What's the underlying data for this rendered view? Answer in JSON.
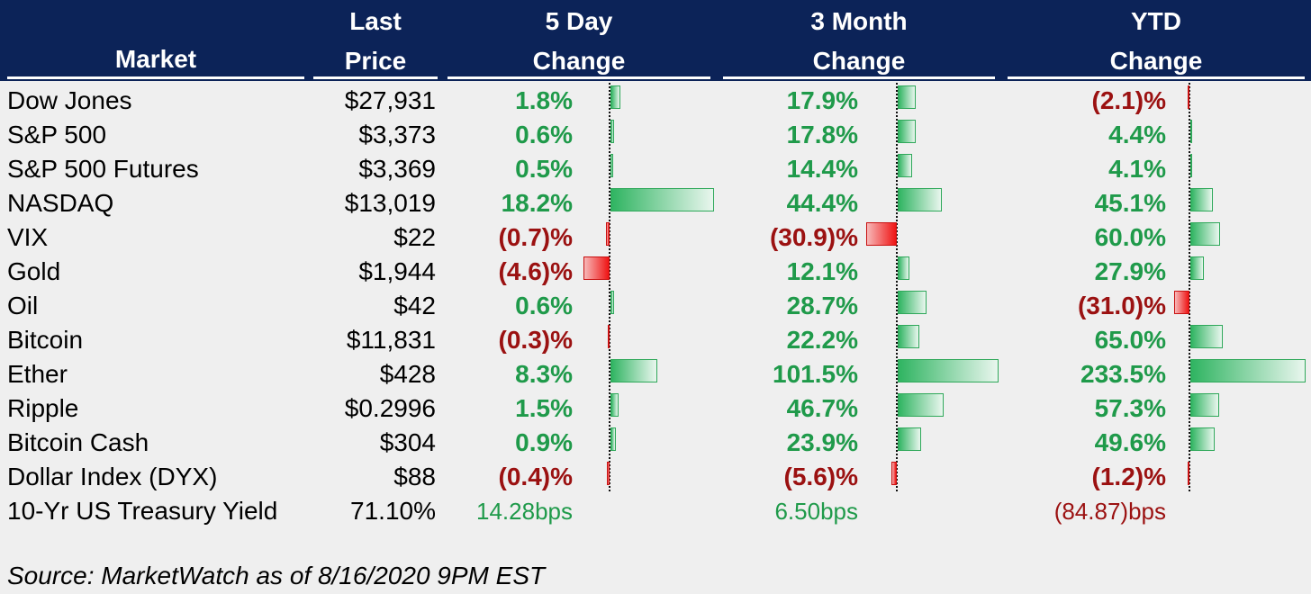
{
  "header": {
    "market": "Market",
    "price_line1": "Last",
    "price_line2": "Price",
    "five_day_line1": "5 Day",
    "five_day_line2": "Change",
    "three_month_line1": "3 Month",
    "three_month_line2": "Change",
    "ytd_line1": "YTD",
    "ytd_line2": "Change"
  },
  "colors": {
    "header_bg": "#0c2358",
    "positive": "#1f9a4a",
    "negative": "#9b1111",
    "background": "#efefef"
  },
  "chart_data": {
    "type": "table",
    "columns": [
      "Market",
      "Last Price",
      "5 Day Change",
      "3 Month Change",
      "YTD Change"
    ],
    "rows": [
      {
        "market": "Dow Jones",
        "price": "$27,931",
        "d5": "1.8%",
        "d5_val": 1.8,
        "m3": "17.9%",
        "m3_val": 17.9,
        "ytd": "(2.1)%",
        "ytd_val": -2.1
      },
      {
        "market": "S&P 500",
        "price": "$3,373",
        "d5": "0.6%",
        "d5_val": 0.6,
        "m3": "17.8%",
        "m3_val": 17.8,
        "ytd": "4.4%",
        "ytd_val": 4.4
      },
      {
        "market": "S&P 500 Futures",
        "price": "$3,369",
        "d5": "0.5%",
        "d5_val": 0.5,
        "m3": "14.4%",
        "m3_val": 14.4,
        "ytd": "4.1%",
        "ytd_val": 4.1
      },
      {
        "market": "NASDAQ",
        "price": "$13,019",
        "d5": "18.2%",
        "d5_val": 18.2,
        "m3": "44.4%",
        "m3_val": 44.4,
        "ytd": "45.1%",
        "ytd_val": 45.1
      },
      {
        "market": "VIX",
        "price": "$22",
        "d5": "(0.7)%",
        "d5_val": -0.7,
        "m3": "(30.9)%",
        "m3_val": -30.9,
        "ytd": "60.0%",
        "ytd_val": 60.0
      },
      {
        "market": "Gold",
        "price": "$1,944",
        "d5": "(4.6)%",
        "d5_val": -4.6,
        "m3": "12.1%",
        "m3_val": 12.1,
        "ytd": "27.9%",
        "ytd_val": 27.9
      },
      {
        "market": "Oil",
        "price": "$42",
        "d5": "0.6%",
        "d5_val": 0.6,
        "m3": "28.7%",
        "m3_val": 28.7,
        "ytd": "(31.0)%",
        "ytd_val": -31.0
      },
      {
        "market": "Bitcoin",
        "price": "$11,831",
        "d5": "(0.3)%",
        "d5_val": -0.3,
        "m3": "22.2%",
        "m3_val": 22.2,
        "ytd": "65.0%",
        "ytd_val": 65.0
      },
      {
        "market": "Ether",
        "price": "$428",
        "d5": "8.3%",
        "d5_val": 8.3,
        "m3": "101.5%",
        "m3_val": 101.5,
        "ytd": "233.5%",
        "ytd_val": 233.5
      },
      {
        "market": "Ripple",
        "price": "$0.2996",
        "d5": "1.5%",
        "d5_val": 1.5,
        "m3": "46.7%",
        "m3_val": 46.7,
        "ytd": "57.3%",
        "ytd_val": 57.3
      },
      {
        "market": "Bitcoin Cash",
        "price": "$304",
        "d5": "0.9%",
        "d5_val": 0.9,
        "m3": "23.9%",
        "m3_val": 23.9,
        "ytd": "49.6%",
        "ytd_val": 49.6
      },
      {
        "market": "Dollar Index (DYX)",
        "price": "$88",
        "d5": "(0.4)%",
        "d5_val": -0.4,
        "m3": "(5.6)%",
        "m3_val": -5.6,
        "ytd": "(1.2)%",
        "ytd_val": -1.2
      }
    ],
    "treasury": {
      "market": "10-Yr US Treasury Yield",
      "price": "71.10%",
      "d5": "14.28bps",
      "d5_val": 14.28,
      "m3": "6.50bps",
      "m3_val": 6.5,
      "ytd": "(84.87)bps",
      "ytd_val": -84.87
    }
  },
  "source": "Source: MarketWatch as of 8/16/2020 9PM EST"
}
